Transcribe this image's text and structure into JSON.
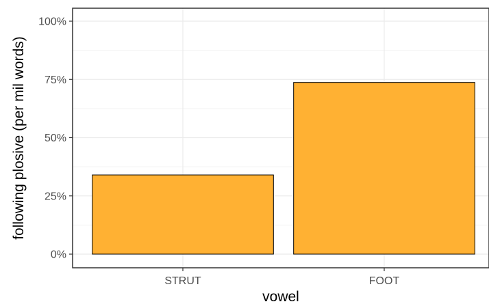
{
  "chart_data": {
    "type": "bar",
    "categories": [
      "STRUT",
      "FOOT"
    ],
    "values": [
      0.34,
      0.737
    ],
    "xlabel": "vowel",
    "ylabel": "following plosive (per mil words)",
    "ylim": [
      0,
      1.0
    ],
    "yticks": [
      0,
      0.25,
      0.5,
      0.75,
      1.0
    ],
    "ytick_labels": [
      "0%",
      "25%",
      "50%",
      "75%",
      "100%"
    ],
    "grid": true,
    "legend": "none",
    "colors": {
      "bar_fill": "#FFB133",
      "bar_stroke": "#000000",
      "grid_major": "#EBEBEB",
      "grid_minor": "#F3F3F3",
      "panel_border": "#333333",
      "tick_text": "#4D4D4D"
    }
  }
}
